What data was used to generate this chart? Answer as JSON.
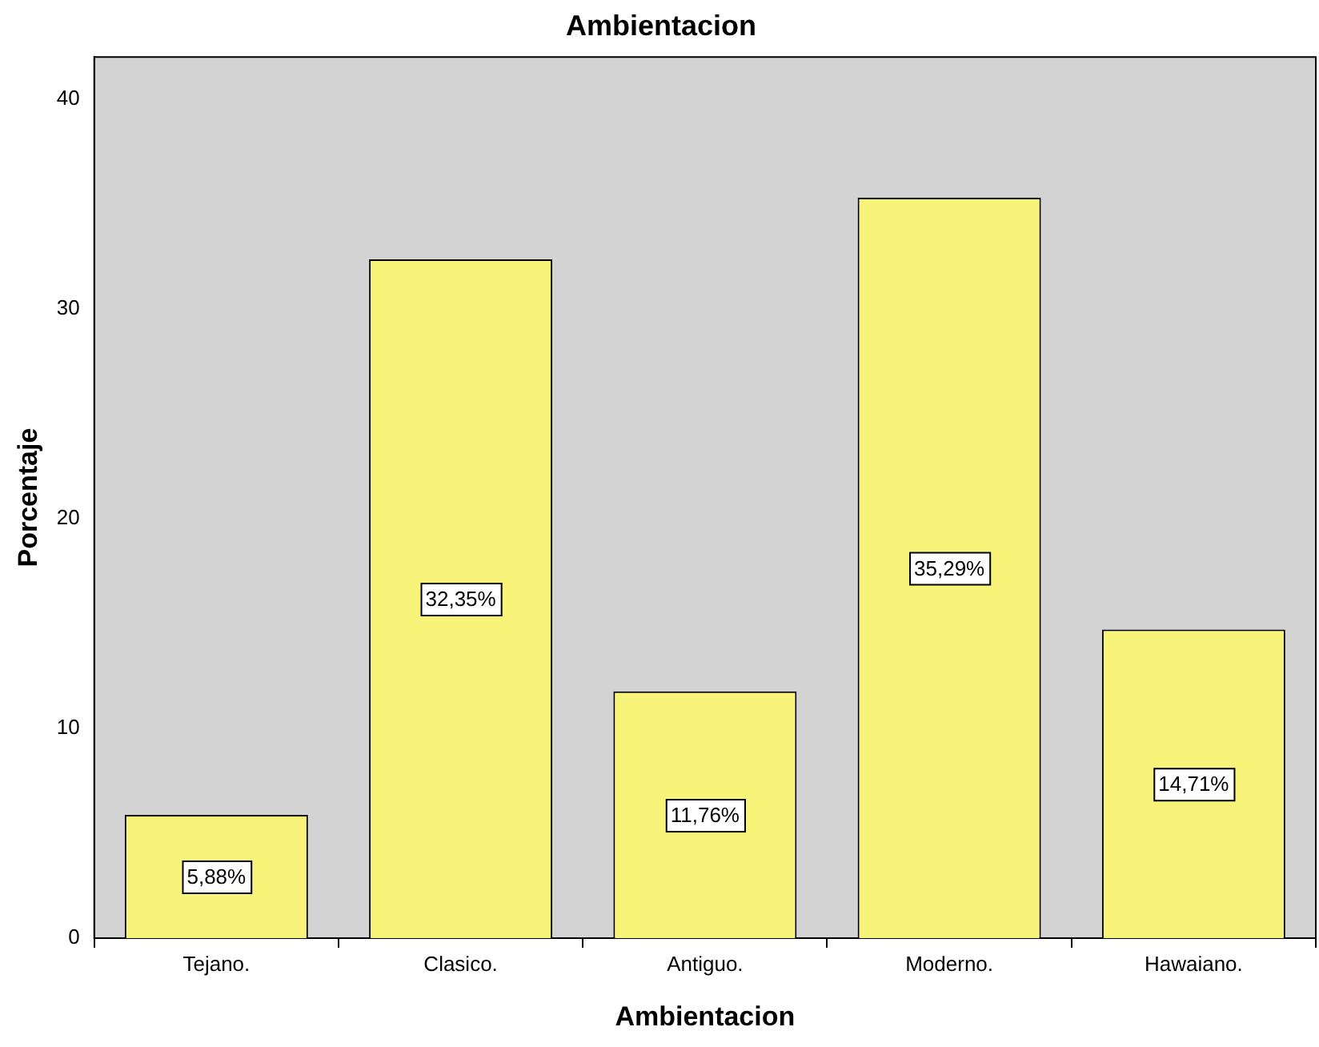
{
  "chart_data": {
    "type": "bar",
    "title": "Ambientacion",
    "xlabel": "Ambientacion",
    "ylabel": "Porcentaje",
    "categories": [
      "Tejano.",
      "Clasico.",
      "Antiguo.",
      "Moderno.",
      "Hawaiano."
    ],
    "values": [
      5.88,
      32.35,
      11.76,
      35.29,
      14.71
    ],
    "value_labels": [
      "5,88%",
      "32,35%",
      "11,76%",
      "35,29%",
      "14,71%"
    ],
    "color": "#f8f47a",
    "ylim": [
      0,
      42
    ],
    "yticks": [
      0,
      10,
      20,
      30,
      40
    ],
    "grid": false,
    "legend": false
  }
}
